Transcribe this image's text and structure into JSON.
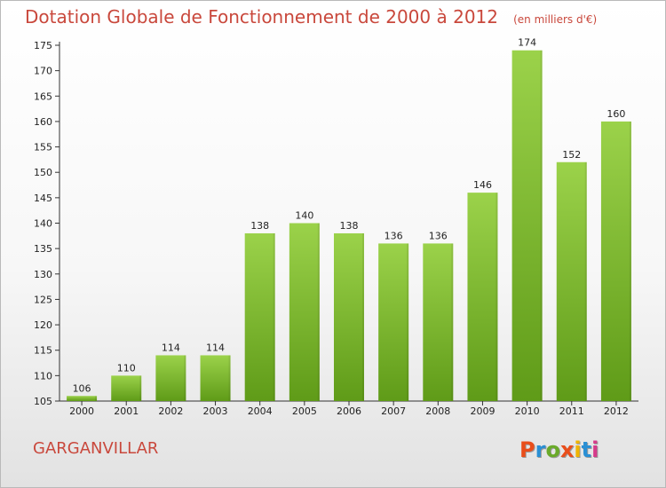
{
  "title": "Dotation Globale de Fonctionnement de 2000 à 2012",
  "unit": "(en milliers d'€)",
  "place_name": "GARGANVILLAR",
  "logo": {
    "letters": [
      "P",
      "r",
      "o",
      "x",
      "i",
      "t",
      "i"
    ],
    "colors": [
      "#e94e1b",
      "#2a8fd4",
      "#6aaa2a",
      "#e94e1b",
      "#f0b400",
      "#2a8fd4",
      "#d63a8a"
    ]
  },
  "colors": {
    "bar_top": "#9bd24a",
    "bar_bottom": "#5f9b18",
    "title": "#c9483c"
  },
  "chart_data": {
    "type": "bar",
    "title": "Dotation Globale de Fonctionnement de 2000 à 2012",
    "xlabel": "",
    "ylabel": "",
    "ylim": [
      105,
      175
    ],
    "yticks": [
      105,
      110,
      115,
      120,
      125,
      130,
      135,
      140,
      145,
      150,
      155,
      160,
      165,
      170,
      175
    ],
    "grid": false,
    "categories": [
      "2000",
      "2001",
      "2002",
      "2003",
      "2004",
      "2005",
      "2006",
      "2007",
      "2008",
      "2009",
      "2010",
      "2011",
      "2012"
    ],
    "values": [
      106,
      110,
      114,
      114,
      138,
      140,
      138,
      136,
      136,
      146,
      174,
      152,
      160
    ],
    "data_labels": [
      "106",
      "110",
      "114",
      "114",
      "138",
      "140",
      "138",
      "136",
      "136",
      "146",
      "174",
      "152",
      "160"
    ]
  }
}
